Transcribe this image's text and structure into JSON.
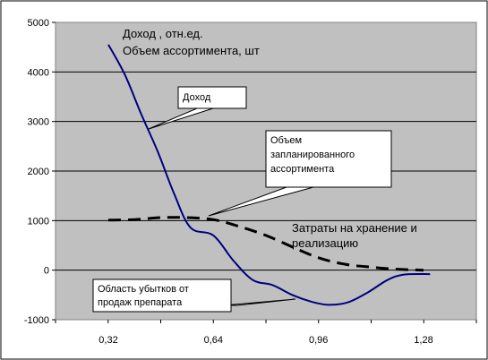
{
  "chart_data": {
    "type": "line",
    "title": "",
    "xlabel": "",
    "ylabel": "",
    "x_ticks": [
      "0,32",
      "0,64",
      "0,96",
      "1,28"
    ],
    "y_ticks": [
      "5000",
      "4000",
      "3000",
      "2000",
      "1000",
      "0",
      "-1000"
    ],
    "ylim": [
      -1000,
      5000
    ],
    "grid": "horizontal",
    "plot_background": "#c0c0c0",
    "series": [
      {
        "color": "#000080",
        "style": "solid",
        "x": [
          0.32,
          0.37,
          0.42,
          0.47,
          0.52,
          0.57,
          0.64,
          0.7,
          0.76,
          0.82,
          0.88,
          0.94,
          0.99,
          1.05,
          1.11,
          1.17,
          1.22,
          1.3
        ],
        "y": [
          4550,
          3950,
          3150,
          2400,
          1550,
          860,
          700,
          200,
          -200,
          -300,
          -500,
          -640,
          -700,
          -650,
          -450,
          -200,
          -90,
          -80
        ]
      },
      {
        "color": "#000000",
        "style": "dashed",
        "x": [
          0.32,
          0.4,
          0.48,
          0.56,
          0.64,
          0.72,
          0.8,
          0.88,
          0.96,
          1.04,
          1.12,
          1.2,
          1.28
        ],
        "y": [
          1010,
          1020,
          1060,
          1060,
          1020,
          880,
          700,
          470,
          250,
          120,
          60,
          20,
          0
        ]
      }
    ],
    "annotations": {
      "top_line1": "Доход , отн.ед.",
      "top_line2": "Объем ассортимента, шт",
      "costs_line1": "Затраты на хранение и",
      "costs_line2": "реализацию"
    },
    "callouts": {
      "income": "Доход",
      "volume_line1": "Объем",
      "volume_line2": "запланированного",
      "volume_line3": "ассортимента",
      "loss_line1": "Область убытков от",
      "loss_line2": "продаж препарата"
    }
  }
}
